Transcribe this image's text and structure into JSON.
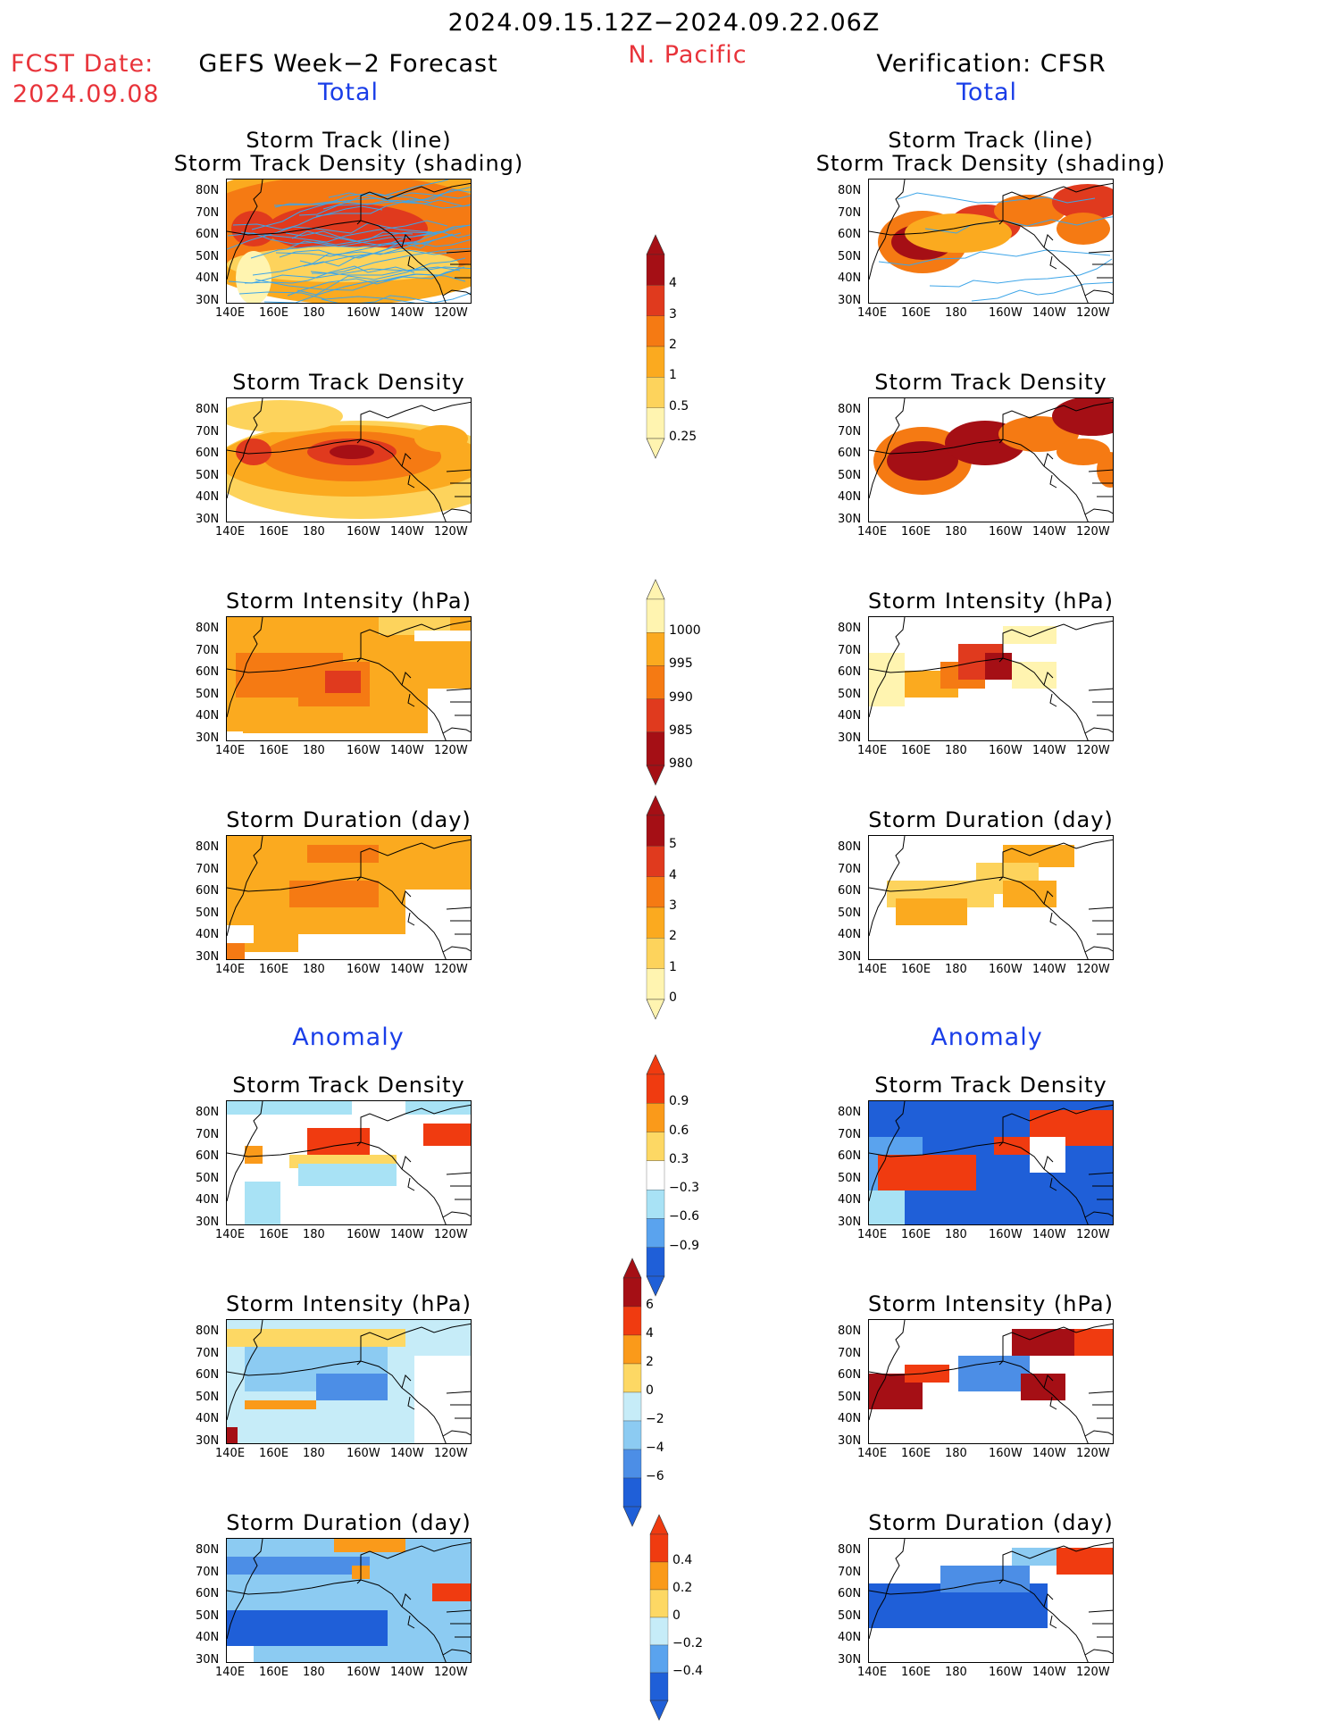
{
  "header": {
    "period": "2024.09.15.12Z−2024.09.22.06Z",
    "region": "N. Pacific",
    "fcst_label": "FCST Date:",
    "fcst_date": "2024.09.08",
    "left_title": "GEFS Week−2 Forecast",
    "right_title": "Verification: CFSR",
    "left_section": "Total",
    "right_section": "Total",
    "left_anomaly": "Anomaly",
    "right_anomaly": "Anomaly"
  },
  "axes": {
    "lat_ticks": [
      "80N",
      "70N",
      "60N",
      "50N",
      "40N",
      "30N"
    ],
    "lon_ticks": [
      "140E",
      "160E",
      "180",
      "160W",
      "140W",
      "120W"
    ]
  },
  "panels": {
    "left": [
      {
        "title1": "Storm Track (line)",
        "title2": "Storm Track Density (shading)"
      },
      {
        "title1": "Storm Track Density",
        "title2": ""
      },
      {
        "title1": "Storm Intensity (hPa)",
        "title2": ""
      },
      {
        "title1": "Storm Duration (day)",
        "title2": ""
      },
      {
        "title1": "Storm Track Density",
        "title2": ""
      },
      {
        "title1": "Storm Intensity (hPa)",
        "title2": ""
      },
      {
        "title1": "Storm Duration (day)",
        "title2": ""
      }
    ],
    "right": [
      {
        "title1": "Storm Track (line)",
        "title2": "Storm Track Density (shading)"
      },
      {
        "title1": "Storm Track Density",
        "title2": ""
      },
      {
        "title1": "Storm Intensity (hPa)",
        "title2": ""
      },
      {
        "title1": "Storm Duration (day)",
        "title2": ""
      },
      {
        "title1": "Storm Track Density",
        "title2": ""
      },
      {
        "title1": "Storm Intensity (hPa)",
        "title2": ""
      },
      {
        "title1": "Storm Duration (day)",
        "title2": ""
      }
    ]
  },
  "colorbars": [
    {
      "name": "track-density",
      "labels": [
        "4",
        "3",
        "2",
        "1",
        "0.5",
        "0.25"
      ],
      "colors": [
        "#a50f15",
        "#e03a1e",
        "#f57a13",
        "#fbaa1f",
        "#fdd35c",
        "#fff4b0"
      ]
    },
    {
      "name": "intensity",
      "labels": [
        "1000",
        "995",
        "990",
        "985",
        "980"
      ],
      "colors": [
        "#fff4b0",
        "#fbaa1f",
        "#f57a13",
        "#e03a1e",
        "#a50f15"
      ]
    },
    {
      "name": "duration",
      "labels": [
        "5",
        "4",
        "3",
        "2",
        "1",
        "0"
      ],
      "colors": [
        "#a50f15",
        "#e03a1e",
        "#f57a13",
        "#fbaa1f",
        "#fdd35c",
        "#fff4b0"
      ]
    },
    {
      "name": "density-anomaly",
      "labels": [
        "0.9",
        "0.6",
        "0.3",
        "−0.3",
        "−0.6",
        "−0.9"
      ],
      "colors": [
        "#f03b10",
        "#fa9a1a",
        "#fdd864",
        "#ffffff",
        "#a8e2f5",
        "#5aa3ee",
        "#1f5fd8"
      ]
    },
    {
      "name": "intensity-anomaly",
      "labels": [
        "6",
        "4",
        "2",
        "0",
        "−2",
        "−4",
        "−6"
      ],
      "colors": [
        "#a50f15",
        "#f03b10",
        "#fa9a1a",
        "#fdd864",
        "#c6ecf8",
        "#8ccbf2",
        "#4c8ee6",
        "#1f5fd8"
      ]
    },
    {
      "name": "duration-anomaly",
      "labels": [
        "0.4",
        "0.2",
        "0",
        "−0.2",
        "−0.4"
      ],
      "colors": [
        "#f03b10",
        "#fa9a1a",
        "#fdd864",
        "#c6ecf8",
        "#5aa3ee",
        "#1f5fd8"
      ]
    }
  ],
  "colors": {
    "track_line": "#3da5e8",
    "track_mark": "#7a2aa8",
    "coast": "#000000"
  }
}
